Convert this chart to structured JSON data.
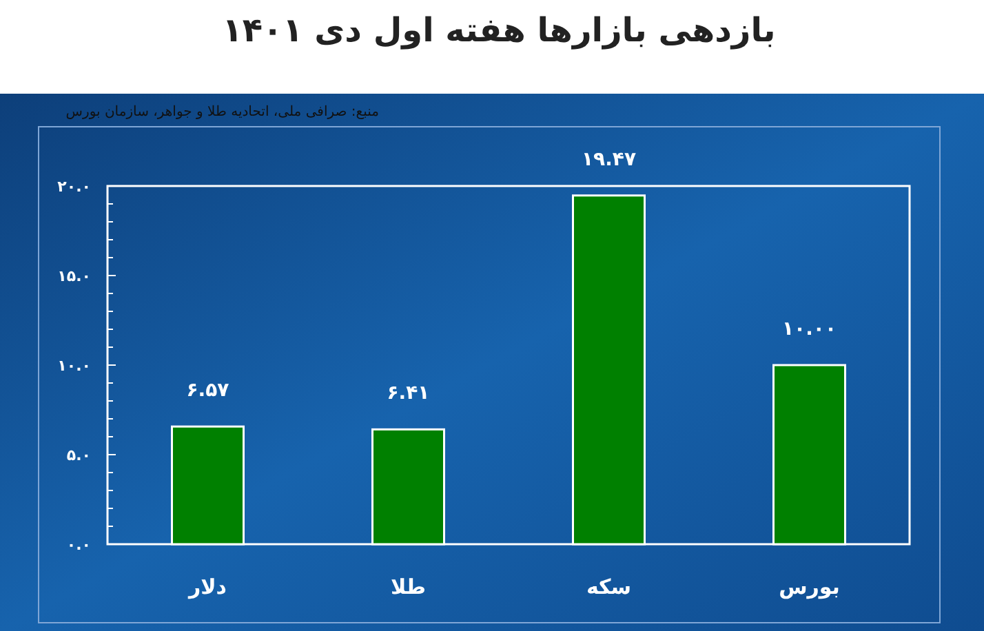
{
  "chart_data": {
    "type": "bar",
    "title": "بازدهی بازارها هفته اول دی ۱۴۰۱",
    "annotations": [
      "منبع: صرافی ملی، اتحادیه طلا و جواهر، سازمان بورس"
    ],
    "categories": [
      "دلار",
      "طلا",
      "سکه",
      "بورس"
    ],
    "values": [
      6.57,
      6.41,
      19.47,
      10.0
    ],
    "value_labels": [
      "۶.۵۷",
      "۶.۴۱",
      "۱۹.۴۷",
      "۱۰.۰۰"
    ],
    "color": "#008000",
    "ylim": [
      0,
      20
    ],
    "yticks": [
      {
        "value": 0,
        "label": "۰.۰"
      },
      {
        "value": 1,
        "label": null
      },
      {
        "value": 2,
        "label": null
      },
      {
        "value": 3,
        "label": null
      },
      {
        "value": 4,
        "label": null
      },
      {
        "value": 5,
        "label": "۵.۰"
      },
      {
        "value": 6,
        "label": null
      },
      {
        "value": 7,
        "label": null
      },
      {
        "value": 8,
        "label": null
      },
      {
        "value": 9,
        "label": null
      },
      {
        "value": 10,
        "label": "۱۰.۰"
      },
      {
        "value": 11,
        "label": null
      },
      {
        "value": 12,
        "label": null
      },
      {
        "value": 13,
        "label": null
      },
      {
        "value": 14,
        "label": null
      },
      {
        "value": 15,
        "label": "۱۵.۰"
      },
      {
        "value": 16,
        "label": null
      },
      {
        "value": 17,
        "label": null
      },
      {
        "value": 18,
        "label": null
      },
      {
        "value": 19,
        "label": null
      },
      {
        "value": 20,
        "label": "۲۰.۰"
      }
    ],
    "grid": false
  }
}
